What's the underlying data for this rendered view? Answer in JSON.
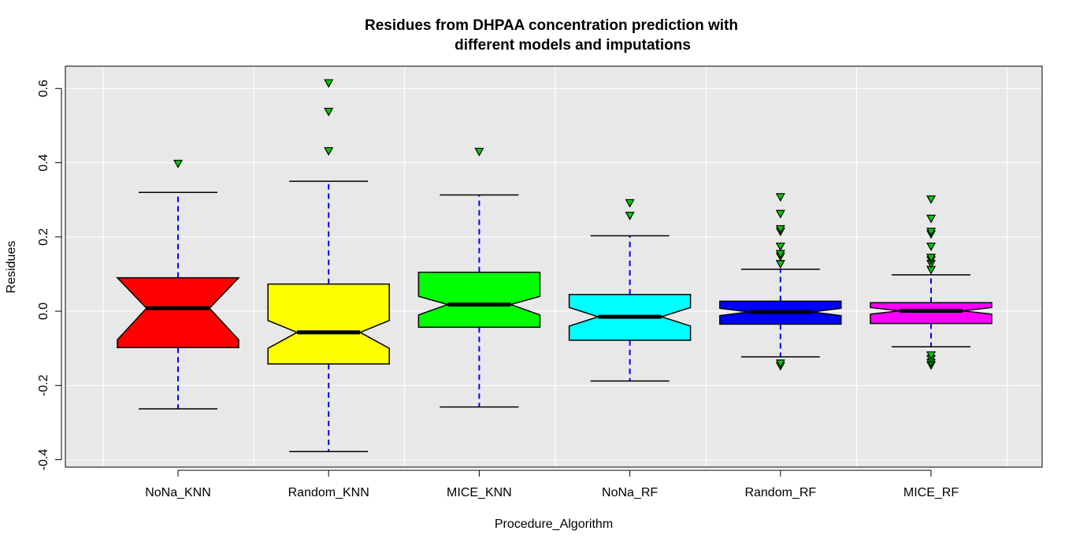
{
  "chart_data": {
    "type": "boxplot",
    "title_lines": [
      "Residues from DHPAA concentration prediction with",
      "different models and imputations"
    ],
    "xlabel": "Procedure_Algorithm",
    "ylabel": "Residues",
    "ylim": [
      -0.42,
      0.66
    ],
    "yticks": [
      -0.4,
      -0.2,
      0.0,
      0.2,
      0.4,
      0.6
    ],
    "ytick_labels": [
      "-0.4",
      "-0.2",
      "0.0",
      "0.2",
      "0.4",
      "0.6"
    ],
    "gridlines_y": [
      -0.4,
      -0.2,
      0.0,
      0.2,
      0.4,
      0.6
    ],
    "notched": true,
    "grid": true,
    "background_color": "#e8e8e8",
    "whisker_color": "#0000ff",
    "outlier_fill": "#00cc00",
    "categories": [
      "NoNa_KNN",
      "Random_KNN",
      "MICE_KNN",
      "NoNa_RF",
      "Random_RF",
      "MICE_RF"
    ],
    "boxes": [
      {
        "name": "NoNa_KNN",
        "color": "#ff0000",
        "whisker_low": -0.263,
        "q1": -0.098,
        "median": 0.008,
        "q3": 0.09,
        "whisker_high": 0.32,
        "notch_low": -0.077,
        "notch_high": 0.09,
        "outliers": [
          0.398
        ]
      },
      {
        "name": "Random_KNN",
        "color": "#ffff00",
        "whisker_low": -0.378,
        "q1": -0.142,
        "median": -0.057,
        "q3": 0.073,
        "whisker_high": 0.35,
        "notch_low": -0.1,
        "notch_high": -0.025,
        "outliers": [
          0.432,
          0.538,
          0.615
        ]
      },
      {
        "name": "MICE_KNN",
        "color": "#00ff00",
        "whisker_low": -0.258,
        "q1": -0.043,
        "median": 0.018,
        "q3": 0.105,
        "whisker_high": 0.313,
        "notch_low": -0.01,
        "notch_high": 0.04,
        "outliers": [
          0.43
        ]
      },
      {
        "name": "NoNa_RF",
        "color": "#00ffff",
        "whisker_low": -0.188,
        "q1": -0.078,
        "median": -0.015,
        "q3": 0.045,
        "whisker_high": 0.203,
        "notch_low": -0.04,
        "notch_high": 0.01,
        "outliers": [
          0.258,
          0.292
        ]
      },
      {
        "name": "Random_RF",
        "color": "#0000ff",
        "whisker_low": -0.123,
        "q1": -0.035,
        "median": -0.002,
        "q3": 0.027,
        "whisker_high": 0.113,
        "notch_low": -0.012,
        "notch_high": 0.008,
        "outliers": [
          -0.147,
          -0.14,
          0.128,
          0.148,
          0.155,
          0.175,
          0.215,
          0.222,
          0.263,
          0.308
        ]
      },
      {
        "name": "MICE_RF",
        "color": "#ff00ff",
        "whisker_low": -0.096,
        "q1": -0.033,
        "median": 0.001,
        "q3": 0.023,
        "whisker_high": 0.098,
        "notch_low": -0.008,
        "notch_high": 0.01,
        "outliers": [
          -0.145,
          -0.138,
          -0.128,
          -0.118,
          0.112,
          0.128,
          0.138,
          0.145,
          0.175,
          0.208,
          0.215,
          0.25,
          0.302
        ]
      }
    ]
  }
}
